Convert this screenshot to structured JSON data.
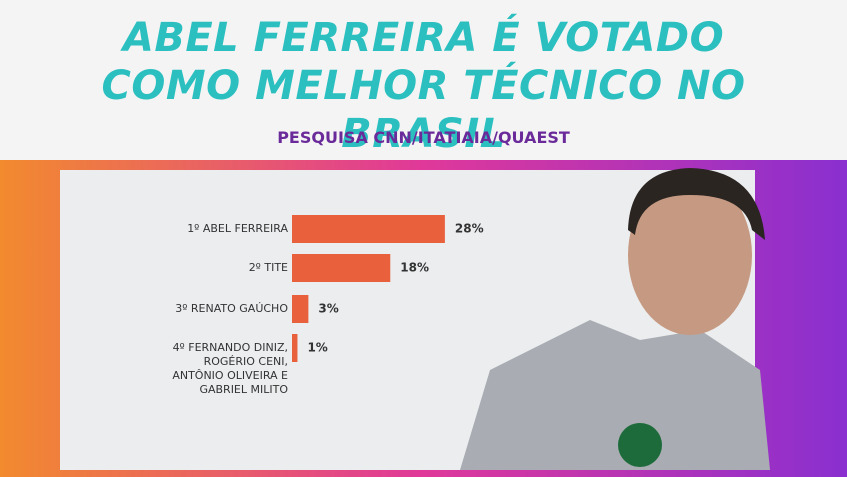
{
  "chart_data": {
    "type": "bar",
    "orientation": "horizontal",
    "title": "ABEL FERREIRA É VOTADO COMO MELHOR TÉCNICO NO BRASIL",
    "subtitle": "PESQUISA CNN/ITATIAIA/QUAEST",
    "categories": [
      "1º ABEL FERREIRA",
      "2º TITE",
      "3º RENATO GAÚCHO",
      "4º FERNANDO DINIZ, ROGÉRIO CENI, ANTÔNIO OLIVEIRA E GABRIEL MILITO"
    ],
    "values": [
      28,
      18,
      3,
      1
    ],
    "value_labels": [
      "28%",
      "18%",
      "3%",
      "1%"
    ],
    "color": "#e8603c"
  }
}
